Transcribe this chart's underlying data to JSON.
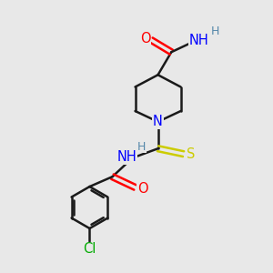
{
  "bg_color": "#e8e8e8",
  "bond_color": "#1a1a1a",
  "N_color": "#0000ff",
  "O_color": "#ff0000",
  "S_color": "#cccc00",
  "Cl_color": "#00aa00",
  "H_color": "#5588aa",
  "line_width": 1.8,
  "font_size": 10.5,
  "small_font_size": 9.0,
  "xlim": [
    0,
    10
  ],
  "ylim": [
    0,
    10
  ]
}
